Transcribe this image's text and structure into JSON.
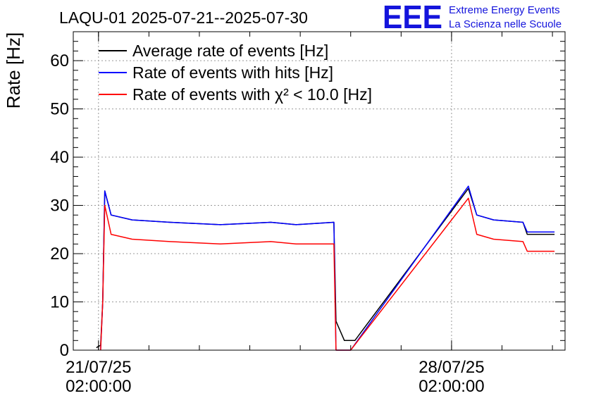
{
  "logo": {
    "mark": "EEE",
    "line1": "Extreme Energy Events",
    "line2": "La Scienza nelle Scuole",
    "color": "#1414dc"
  },
  "chart_data": {
    "type": "line",
    "title": "LAQU-01 2025-07-21--2025-07-30",
    "ylabel": "Rate [Hz]",
    "xlabel": "",
    "ylim": [
      0,
      66
    ],
    "yticks": [
      0,
      10,
      20,
      30,
      40,
      50,
      60
    ],
    "xlim": [
      "2025-07-20 14:00",
      "2025-07-30 08:00"
    ],
    "xticks": [
      {
        "x": "2025-07-21 02:00",
        "label_date": "21/07/25",
        "label_time": "02:00:00"
      },
      {
        "x": "2025-07-28 02:00",
        "label_date": "28/07/25",
        "label_time": "02:00:00"
      }
    ],
    "grid": true,
    "legend_position": "top-left",
    "series": [
      {
        "name": "Average rate of events [Hz]",
        "color": "#000000",
        "x": [
          "2025-07-21 01:00",
          "2025-07-21 02:00",
          "2025-07-21 03:00",
          "2025-07-21 04:00",
          "2025-07-21 05:00",
          "2025-07-21 08:00",
          "2025-07-21 18:00",
          "2025-07-22 12:00",
          "2025-07-23 12:00",
          "2025-07-24 12:00",
          "2025-07-25 00:00",
          "2025-07-25 18:00",
          "2025-07-25 19:00",
          "2025-07-25 23:00",
          "2025-07-26 04:00",
          "2025-07-28 10:00",
          "2025-07-28 14:00",
          "2025-07-28 22:00",
          "2025-07-29 12:00",
          "2025-07-29 14:00",
          "2025-07-30 03:00"
        ],
        "y": [
          0.5,
          0.8,
          1,
          10,
          33,
          28,
          27,
          26.5,
          26,
          26.5,
          26,
          26.5,
          6,
          2,
          2,
          33.5,
          28,
          27,
          26.5,
          24,
          24
        ]
      },
      {
        "name": "Rate of events with hits [Hz]",
        "color": "#0000ff",
        "x": [
          "2025-07-21 03:00",
          "2025-07-21 04:00",
          "2025-07-21 05:00",
          "2025-07-21 08:00",
          "2025-07-21 18:00",
          "2025-07-22 12:00",
          "2025-07-23 12:00",
          "2025-07-24 12:00",
          "2025-07-25 00:00",
          "2025-07-25 18:00",
          "2025-07-25 19:00",
          "2025-07-26 02:00",
          "2025-07-28 10:00",
          "2025-07-28 14:00",
          "2025-07-28 22:00",
          "2025-07-29 12:00",
          "2025-07-29 14:00",
          "2025-07-30 03:00"
        ],
        "y": [
          0,
          10,
          33,
          28,
          27,
          26.5,
          26,
          26.5,
          26,
          26.5,
          0,
          0,
          34,
          28,
          27,
          26.5,
          24.5,
          24.5
        ]
      },
      {
        "name": "Rate of events with χ² < 10.0 [Hz]",
        "color": "#ff0000",
        "x": [
          "2025-07-21 03:00",
          "2025-07-21 04:00",
          "2025-07-21 05:00",
          "2025-07-21 08:00",
          "2025-07-21 18:00",
          "2025-07-22 12:00",
          "2025-07-23 12:00",
          "2025-07-24 12:00",
          "2025-07-25 00:00",
          "2025-07-25 18:00",
          "2025-07-25 19:00",
          "2025-07-26 02:00",
          "2025-07-28 10:00",
          "2025-07-28 14:00",
          "2025-07-28 22:00",
          "2025-07-29 12:00",
          "2025-07-29 14:00",
          "2025-07-30 03:00"
        ],
        "y": [
          0,
          10,
          30,
          24,
          23,
          22.5,
          22,
          22.5,
          22,
          22,
          0,
          0,
          31.5,
          24,
          23,
          22.5,
          20.5,
          20.5
        ]
      }
    ]
  }
}
